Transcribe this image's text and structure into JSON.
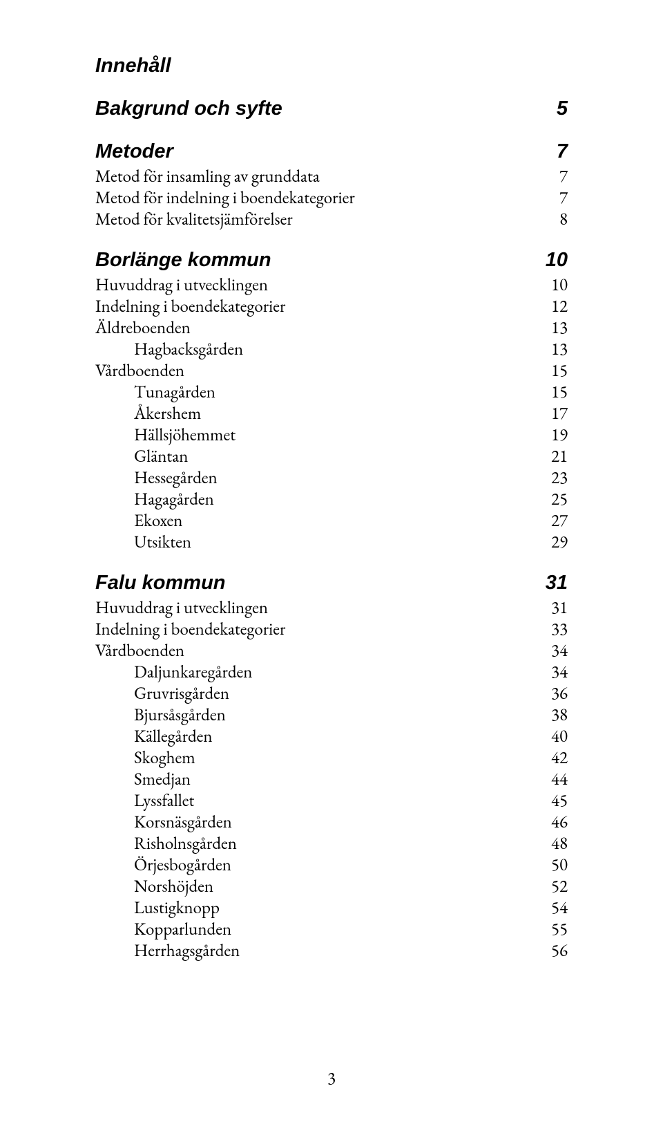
{
  "colors": {
    "text": "#000000",
    "background": "#ffffff"
  },
  "typography": {
    "body_font": "Garamond / Times serif",
    "body_size_pt": 13,
    "heading_font": "Arial",
    "heading_style": "bold italic",
    "heading_size_pt": 15
  },
  "toc": {
    "title": "Innehåll",
    "sections": [
      {
        "heading": "Bakgrund och syfte",
        "page": "5",
        "items": []
      },
      {
        "heading": "Metoder",
        "page": "7",
        "items": [
          {
            "label": "Metod för insamling av grunddata",
            "page": "7",
            "indent": 1
          },
          {
            "label": "Metod för indelning i boendekategorier",
            "page": "7",
            "indent": 1
          },
          {
            "label": "Metod för kvalitetsjämförelser",
            "page": "8",
            "indent": 1
          }
        ]
      },
      {
        "heading": "Borlänge kommun",
        "page": "10",
        "items": [
          {
            "label": "Huvuddrag i utvecklingen",
            "page": "10",
            "indent": 1
          },
          {
            "label": "Indelning i boendekategorier",
            "page": "12",
            "indent": 1
          },
          {
            "label": "Äldreboenden",
            "page": "13",
            "indent": 1
          },
          {
            "label": "Hagbacksgården",
            "page": "13",
            "indent": 2
          },
          {
            "label": "Vårdboenden",
            "page": "15",
            "indent": 1
          },
          {
            "label": "Tunagården",
            "page": "15",
            "indent": 2
          },
          {
            "label": "Åkershem",
            "page": "17",
            "indent": 2
          },
          {
            "label": "Hällsjöhemmet",
            "page": "19",
            "indent": 2
          },
          {
            "label": "Gläntan",
            "page": "21",
            "indent": 2
          },
          {
            "label": "Hessegården",
            "page": "23",
            "indent": 2
          },
          {
            "label": "Hagagården",
            "page": "25",
            "indent": 2
          },
          {
            "label": "Ekoxen",
            "page": "27",
            "indent": 2
          },
          {
            "label": "Utsikten",
            "page": "29",
            "indent": 2
          }
        ]
      },
      {
        "heading": "Falu kommun",
        "page": "31",
        "items": [
          {
            "label": "Huvuddrag i utvecklingen",
            "page": "31",
            "indent": 1
          },
          {
            "label": "Indelning i boendekategorier",
            "page": "33",
            "indent": 1
          },
          {
            "label": "Vårdboenden",
            "page": "34",
            "indent": 1
          },
          {
            "label": "Daljunkaregården",
            "page": "34",
            "indent": 2
          },
          {
            "label": "Gruvrisgården",
            "page": "36",
            "indent": 2
          },
          {
            "label": "Bjursåsgården",
            "page": "38",
            "indent": 2
          },
          {
            "label": "Källegården",
            "page": "40",
            "indent": 2
          },
          {
            "label": "Skoghem",
            "page": "42",
            "indent": 2
          },
          {
            "label": "Smedjan",
            "page": "44",
            "indent": 2
          },
          {
            "label": "Lyssfallet",
            "page": "45",
            "indent": 2
          },
          {
            "label": "Korsnäsgården",
            "page": "46",
            "indent": 2
          },
          {
            "label": "Risholnsgården",
            "page": "48",
            "indent": 2
          },
          {
            "label": "Örjesbogården",
            "page": "50",
            "indent": 2
          },
          {
            "label": "Norshöjden",
            "page": "52",
            "indent": 2
          },
          {
            "label": "Lustigknopp",
            "page": "54",
            "indent": 2
          },
          {
            "label": "Kopparlunden",
            "page": "55",
            "indent": 2
          },
          {
            "label": "Herrhagsgården",
            "page": "56",
            "indent": 2
          }
        ]
      }
    ]
  },
  "footer_page_number": "3"
}
